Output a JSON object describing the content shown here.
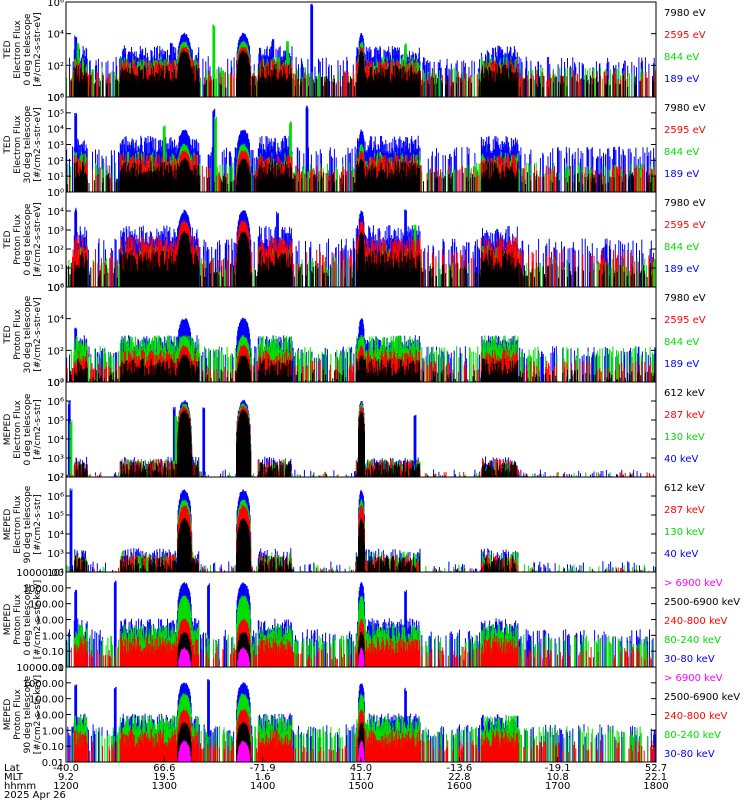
{
  "chart_data": [
    {
      "type": "line",
      "ylabel_lines": [
        "TED",
        "Electron Flux",
        "0 deg telescope",
        "[#/cm2-s-str-eV]"
      ],
      "ylog": true,
      "ylim": [
        1,
        1000000
      ],
      "yticks": [
        {
          "v": 1,
          "t": "10⁰"
        },
        {
          "v": 100,
          "t": "10²"
        },
        {
          "v": 10000,
          "t": "10⁴"
        },
        {
          "v": 1000000,
          "t": "10⁶"
        }
      ],
      "legend": [
        {
          "label": "7980 eV",
          "color": "#000000"
        },
        {
          "label": "2595 eV",
          "color": "#ff0000"
        },
        {
          "label": "844 eV",
          "color": "#00dd00"
        },
        {
          "label": "189 eV",
          "color": "#0000ff"
        }
      ],
      "series": [
        {
          "color": "#0000ff",
          "base": 300,
          "peak": 10000,
          "spikes": [
            [
              1210,
              8000
            ],
            [
              1307,
              3000
            ],
            [
              1410,
              5000
            ],
            [
              1450,
              1000000
            ]
          ]
        },
        {
          "color": "#00dd00",
          "base": 60,
          "peak": 3000,
          "spikes": [
            [
              1212,
              3000
            ],
            [
              1350,
              40000
            ],
            [
              1425,
              4000
            ],
            [
              1545,
              3000
            ]
          ]
        },
        {
          "color": "#ff0000",
          "base": 40,
          "peak": 1500,
          "spikes": []
        },
        {
          "color": "#000000",
          "base": 20,
          "peak": 800,
          "spikes": []
        }
      ]
    },
    {
      "type": "line",
      "ylabel_lines": [
        "TED",
        "Electron Flux",
        "30 deg telescope",
        "[#/cm2-s-str-eV]"
      ],
      "ylog": true,
      "ylim": [
        1,
        1000000
      ],
      "yticks": [
        {
          "v": 1,
          "t": "10⁰"
        },
        {
          "v": 10,
          "t": "10¹"
        },
        {
          "v": 100,
          "t": "10²"
        },
        {
          "v": 1000,
          "t": "10³"
        },
        {
          "v": 10000,
          "t": "10⁴"
        },
        {
          "v": 100000,
          "t": "10⁵"
        },
        {
          "v": 1000000,
          "t": "10⁶"
        }
      ],
      "legend": [
        {
          "label": "7980 eV",
          "color": "#000000"
        },
        {
          "label": "2595 eV",
          "color": "#ff0000"
        },
        {
          "label": "844 eV",
          "color": "#00dd00"
        },
        {
          "label": "189 eV",
          "color": "#0000ff"
        }
      ],
      "series": [
        {
          "color": "#0000ff",
          "base": 600,
          "peak": 8000,
          "spikes": [
            [
              1210,
              100000
            ],
            [
              1350,
              200000
            ],
            [
              1445,
              300000
            ]
          ]
        },
        {
          "color": "#00dd00",
          "base": 60,
          "peak": 1000,
          "spikes": [
            [
              1300,
              20000
            ],
            [
              1352,
              60000
            ],
            [
              1428,
              30000
            ]
          ]
        },
        {
          "color": "#ff0000",
          "base": 40,
          "peak": 400,
          "spikes": []
        },
        {
          "color": "#000000",
          "base": 15,
          "peak": 120,
          "spikes": []
        }
      ]
    },
    {
      "type": "line",
      "ylabel_lines": [
        "TED",
        "Proton Flux",
        "0 deg telescope",
        "[#/cm2-s-str-eV]"
      ],
      "ylog": true,
      "ylim": [
        1,
        100000
      ],
      "yticks": [
        {
          "v": 1,
          "t": "10⁰"
        },
        {
          "v": 10,
          "t": "10¹"
        },
        {
          "v": 100,
          "t": "10²"
        },
        {
          "v": 1000,
          "t": "10³"
        },
        {
          "v": 10000,
          "t": "10⁴"
        }
      ],
      "legend": [
        {
          "label": "7980 eV",
          "color": "#000000"
        },
        {
          "label": "2595 eV",
          "color": "#ff0000"
        },
        {
          "label": "844 eV",
          "color": "#00dd00"
        },
        {
          "label": "189 eV",
          "color": "#0000ff"
        }
      ],
      "series": [
        {
          "color": "#0000ff",
          "base": 300,
          "peak": 10000,
          "spikes": [
            [
              1210,
              15000
            ],
            [
              1415,
              10000
            ],
            [
              1545,
              15000
            ]
          ]
        },
        {
          "color": "#00dd00",
          "base": 30,
          "peak": 1200,
          "spikes": [
            [
              1555,
              2000
            ]
          ]
        },
        {
          "color": "#ff0000",
          "base": 80,
          "peak": 3000,
          "spikes": []
        },
        {
          "color": "#000000",
          "base": 15,
          "peak": 800,
          "spikes": []
        }
      ]
    },
    {
      "type": "line",
      "ylabel_lines": [
        "TED",
        "Proton Flux",
        "30 deg telescope",
        "[#/cm2-s-str-eV]"
      ],
      "ylog": true,
      "ylim": [
        1,
        1000000
      ],
      "yticks": [
        {
          "v": 1,
          "t": "10⁰"
        },
        {
          "v": 100,
          "t": "10²"
        },
        {
          "v": 10000,
          "t": "10⁴"
        },
        {
          "v": 1000000,
          "t": "10⁶"
        }
      ],
      "legend": [
        {
          "label": "7980 eV",
          "color": "#000000"
        },
        {
          "label": "2595 eV",
          "color": "#ff0000"
        },
        {
          "label": "844 eV",
          "color": "#00dd00"
        },
        {
          "label": "189 eV",
          "color": "#0000ff"
        }
      ],
      "series": [
        {
          "color": "#0000ff",
          "base": 150,
          "peak": 10000,
          "spikes": [
            [
              1210,
              3000
            ]
          ]
        },
        {
          "color": "#00dd00",
          "base": 150,
          "peak": 800,
          "spikes": []
        },
        {
          "color": "#ff0000",
          "base": 20,
          "peak": 200,
          "spikes": []
        },
        {
          "color": "#000000",
          "base": 5,
          "peak": 50,
          "spikes": []
        }
      ]
    },
    {
      "type": "line",
      "ylabel_lines": [
        "MEPED",
        "Electron Flux",
        "0 deg telescope",
        "[#/cm2-s-str]"
      ],
      "ylog": true,
      "ylim": [
        100,
        10000000
      ],
      "yticks": [
        {
          "v": 100,
          "t": "10²"
        },
        {
          "v": 1000,
          "t": "10³"
        },
        {
          "v": 10000,
          "t": "10⁴"
        },
        {
          "v": 100000,
          "t": "10⁵"
        },
        {
          "v": 1000000,
          "t": "10⁶"
        },
        {
          "v": 10000000,
          "t": "10⁷"
        }
      ],
      "legend": [
        {
          "label": "612 keV",
          "color": "#000000"
        },
        {
          "label": "287 keV",
          "color": "#ff0000"
        },
        {
          "label": "130 keV",
          "color": "#00dd00"
        },
        {
          "label": "40 keV",
          "color": "#0000ff"
        }
      ],
      "series": [
        {
          "color": "#0000ff",
          "base": 200,
          "peak": 1000000,
          "spikes": [
            [
              1203,
              1000000
            ],
            [
              1310,
              500000
            ],
            [
              1340,
              500000
            ],
            [
              1555,
              200000
            ]
          ]
        },
        {
          "color": "#00dd00",
          "base": 150,
          "peak": 700000,
          "spikes": [
            [
              1205,
              100000
            ],
            [
              1312,
              200000
            ]
          ]
        },
        {
          "color": "#ff0000",
          "base": 150,
          "peak": 500000,
          "spikes": []
        },
        {
          "color": "#000000",
          "base": 120,
          "peak": 300000,
          "spikes": []
        }
      ]
    },
    {
      "type": "line",
      "ylabel_lines": [
        "MEPED",
        "Electron Flux",
        "90 deg telescope",
        "[#/cm2-s-str]"
      ],
      "ylog": true,
      "ylim": [
        100,
        10000000
      ],
      "yticks": [
        {
          "v": 100,
          "t": "10²"
        },
        {
          "v": 1000,
          "t": "10³"
        },
        {
          "v": 10000,
          "t": "10⁴"
        },
        {
          "v": 100000,
          "t": "10⁵"
        },
        {
          "v": 1000000,
          "t": "10⁶"
        },
        {
          "v": 10000000,
          "t": "10⁷"
        }
      ],
      "legend": [
        {
          "label": "612 keV",
          "color": "#000000"
        },
        {
          "label": "287 keV",
          "color": "#ff0000"
        },
        {
          "label": "130 keV",
          "color": "#00dd00"
        },
        {
          "label": "40 keV",
          "color": "#0000ff"
        }
      ],
      "series": [
        {
          "color": "#0000ff",
          "base": 300,
          "peak": 2000000,
          "spikes": [
            [
              1205,
              3000000
            ]
          ]
        },
        {
          "color": "#00dd00",
          "base": 200,
          "peak": 600000,
          "spikes": []
        },
        {
          "color": "#ff0000",
          "base": 150,
          "peak": 300000,
          "spikes": []
        },
        {
          "color": "#000000",
          "base": 120,
          "peak": 60000,
          "spikes": []
        }
      ]
    },
    {
      "type": "line",
      "ylabel_lines": [
        "MEPED",
        "Proton Flux",
        "0 deg telescope",
        "[#/cm2-s-str-keV]"
      ],
      "ylog": true,
      "ylim": [
        0.01,
        10000
      ],
      "yticks": [
        {
          "v": 0.01,
          "t": "0.01"
        },
        {
          "v": 0.1,
          "t": "0.10"
        },
        {
          "v": 1,
          "t": "1.00"
        },
        {
          "v": 10,
          "t": "10.00"
        },
        {
          "v": 100,
          "t": "100.00"
        },
        {
          "v": 1000,
          "t": "1000.00"
        },
        {
          "v": 10000,
          "t": "10000.00"
        }
      ],
      "legend": [
        {
          "label": "> 6900 keV",
          "color": "#ff00ff"
        },
        {
          "label": "2500-6900 keV",
          "color": "#000000"
        },
        {
          "label": "240-800 keV",
          "color": "#ff0000"
        },
        {
          "label": "80-240 keV",
          "color": "#00dd00"
        },
        {
          "label": "30-80 keV",
          "color": "#0000ff"
        }
      ],
      "series": [
        {
          "color": "#0000ff",
          "base": 2,
          "peak": 2000,
          "spikes": [
            [
              1210,
              800
            ],
            [
              1250,
              3000
            ],
            [
              1345,
              2000
            ],
            [
              1545,
              800
            ]
          ]
        },
        {
          "color": "#00dd00",
          "base": 0.9,
          "peak": 300,
          "spikes": []
        },
        {
          "color": "#ff0000",
          "base": 0.15,
          "peak": 10,
          "spikes": []
        },
        {
          "color": "#000000",
          "base": 0,
          "peak": 1.5,
          "spikes": []
        },
        {
          "color": "#ff00ff",
          "base": 0,
          "peak": 0.15,
          "spikes": []
        }
      ]
    },
    {
      "type": "line",
      "ylabel_lines": [
        "MEPED",
        "Proton Flux",
        "90 deg telescope",
        "[#/cm2-s-str-keV]"
      ],
      "ylog": true,
      "ylim": [
        0.01,
        10000
      ],
      "yticks": [
        {
          "v": 0.01,
          "t": "0.01"
        },
        {
          "v": 0.1,
          "t": "0.10"
        },
        {
          "v": 1,
          "t": "1.00"
        },
        {
          "v": 10,
          "t": "10.00"
        },
        {
          "v": 100,
          "t": "100.00"
        },
        {
          "v": 1000,
          "t": "1000.00"
        },
        {
          "v": 10000,
          "t": "10000.00"
        }
      ],
      "legend": [
        {
          "label": "> 6900 keV",
          "color": "#ff00ff"
        },
        {
          "label": "2500-6900 keV",
          "color": "#000000"
        },
        {
          "label": "240-800 keV",
          "color": "#ff0000"
        },
        {
          "label": "80-240 keV",
          "color": "#00dd00"
        },
        {
          "label": "30-80 keV",
          "color": "#0000ff"
        }
      ],
      "series": [
        {
          "color": "#0000ff",
          "base": 2,
          "peak": 1000,
          "spikes": [
            [
              1210,
              800
            ],
            [
              1250,
              600
            ],
            [
              1345,
              2000
            ],
            [
              1545,
              500
            ]
          ]
        },
        {
          "color": "#00dd00",
          "base": 1.5,
          "peak": 200,
          "spikes": []
        },
        {
          "color": "#ff0000",
          "base": 0.2,
          "peak": 20,
          "spikes": []
        },
        {
          "color": "#000000",
          "base": 0,
          "peak": 3,
          "spikes": []
        },
        {
          "color": "#ff00ff",
          "base": 0,
          "peak": 0.2,
          "spikes": []
        }
      ]
    }
  ],
  "x_axis": {
    "range": [
      1200,
      1800
    ],
    "row_labels": [
      "Lat",
      "MLT",
      "hhmm"
    ],
    "ticks": [
      {
        "hhmm": "1200",
        "lat": "-40.0",
        "mlt": "9.2"
      },
      {
        "hhmm": "1300",
        "lat": "66.6",
        "mlt": "19.5"
      },
      {
        "hhmm": "1400",
        "lat": "-71.9",
        "mlt": "1.6"
      },
      {
        "hhmm": "1500",
        "lat": "45.0",
        "mlt": "11.7"
      },
      {
        "hhmm": "1600",
        "lat": "-13.6",
        "mlt": "22.8"
      },
      {
        "hhmm": "1700",
        "lat": "-19.1",
        "mlt": "10.8"
      },
      {
        "hhmm": "1800",
        "lat": "52.7",
        "mlt": "22.1"
      }
    ],
    "date": "2025 Apr 26"
  }
}
